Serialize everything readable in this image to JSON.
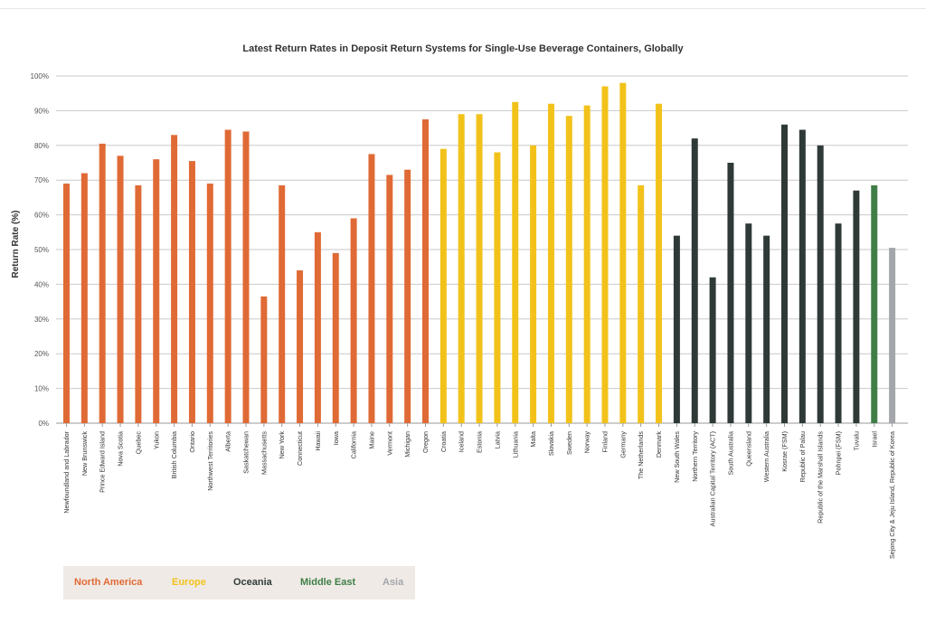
{
  "chart_data": {
    "type": "bar",
    "title": "Latest Return Rates in Deposit Return Systems for Single-Use Beverage Containers, Globally",
    "xlabel": "",
    "ylabel": "Return Rate (%)",
    "ylim": [
      0,
      100
    ],
    "y_ticks": [
      "0%",
      "10%",
      "20%",
      "30%",
      "40%",
      "50%",
      "60%",
      "70%",
      "80%",
      "90%",
      "100%"
    ],
    "grid": true,
    "categories": [
      "Newfoundland and Labrador",
      "New Brunswick",
      "Prince Edward Island",
      "Nova Scotia",
      "Quebec",
      "Yukon",
      "British Columbia",
      "Ontario",
      "Northwest Territories",
      "Alberta",
      "Saskatchewan",
      "Massachusetts",
      "New York",
      "Connecticut",
      "Hawaii",
      "Iowa",
      "California",
      "Maine",
      "Vermont",
      "Michigan",
      "Oregon",
      "Croatia",
      "Iceland",
      "Estonia",
      "Latvia",
      "Lithuania",
      "Malta",
      "Slovakia",
      "Sweden",
      "Norway",
      "Finland",
      "Germany",
      "The Netherlands",
      "Denmark",
      "New South Wales",
      "Northern Territory",
      "Australian Capital Territory (ACT)",
      "South Australia",
      "Queensland",
      "Western Australia",
      "Kosrae (FSM)",
      "Republic of Palau",
      "Republic of the Marshall Islands",
      "Pohnpei (FSM)",
      "Tuvalu",
      "Israel",
      "Sejong City & Jeju Island, Republic of Korea"
    ],
    "values": [
      69,
      72,
      80.5,
      77,
      68.5,
      76,
      83,
      75.5,
      69,
      84.5,
      84,
      36.5,
      68.5,
      44,
      55,
      49,
      59,
      77.5,
      71.5,
      73,
      87.5,
      79,
      89,
      89,
      78,
      92.5,
      80,
      92,
      88.5,
      91.5,
      97,
      98,
      68.5,
      92,
      54,
      82,
      42,
      75,
      57.5,
      54,
      86,
      84.5,
      80,
      57.5,
      67,
      68.5,
      50.5
    ],
    "regions": [
      "North America",
      "North America",
      "North America",
      "North America",
      "North America",
      "North America",
      "North America",
      "North America",
      "North America",
      "North America",
      "North America",
      "North America",
      "North America",
      "North America",
      "North America",
      "North America",
      "North America",
      "North America",
      "North America",
      "North America",
      "North America",
      "Europe",
      "Europe",
      "Europe",
      "Europe",
      "Europe",
      "Europe",
      "Europe",
      "Europe",
      "Europe",
      "Europe",
      "Europe",
      "Europe",
      "Europe",
      "Oceania",
      "Oceania",
      "Oceania",
      "Oceania",
      "Oceania",
      "Oceania",
      "Oceania",
      "Oceania",
      "Oceania",
      "Oceania",
      "Oceania",
      "Middle East",
      "Asia"
    ],
    "legend": [
      {
        "name": "North America",
        "color": "#e06a35"
      },
      {
        "name": "Europe",
        "color": "#f2c21b"
      },
      {
        "name": "Oceania",
        "color": "#2f3a38"
      },
      {
        "name": "Middle East",
        "color": "#3f7f47"
      },
      {
        "name": "Asia",
        "color": "#a3a6aa"
      }
    ]
  }
}
